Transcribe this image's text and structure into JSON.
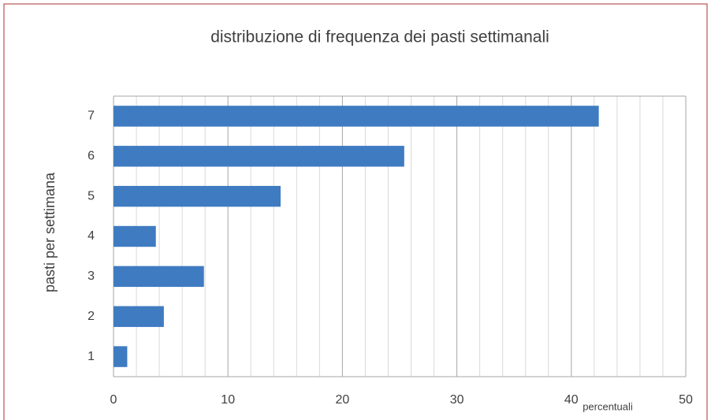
{
  "chart_data": {
    "type": "bar",
    "orientation": "horizontal",
    "title": "distribuzione  di frequenza dei pasti settimanali",
    "x_label": "percentuali",
    "y_label": "pasti per settimana",
    "categories": [
      "1",
      "2",
      "3",
      "4",
      "5",
      "6",
      "7"
    ],
    "values": [
      1.2,
      4.4,
      7.9,
      3.7,
      14.6,
      25.4,
      42.4
    ],
    "color": "#3f7bc1",
    "xlim": [
      0,
      50
    ],
    "xticks": [
      0,
      10,
      20,
      30,
      40,
      50
    ],
    "grid": true,
    "minor_grid": true
  }
}
